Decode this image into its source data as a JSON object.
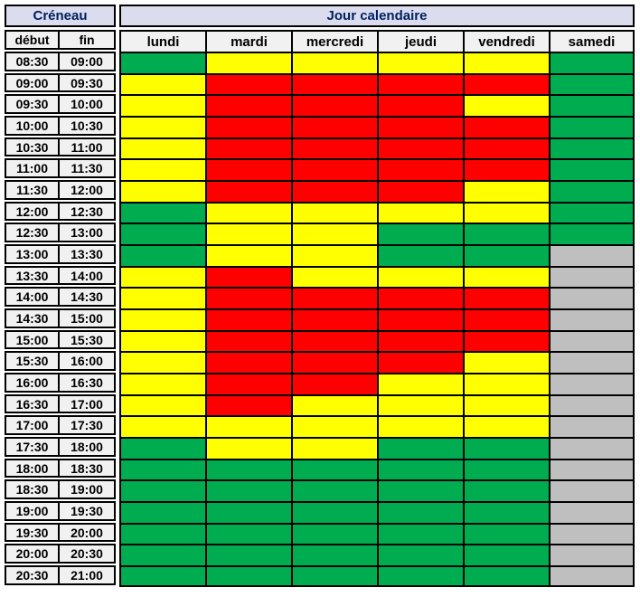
{
  "header": {
    "creneau_label": "Créneau",
    "jour_label": "Jour calendaire",
    "debut_label": "début",
    "fin_label": "fin"
  },
  "colors": {
    "green": "#00AC50",
    "yellow": "#FFFF00",
    "red": "#FF0000",
    "gray": "#BFBFBF",
    "header_bg": "#DCDCEF",
    "header_text": "#002060",
    "label_bg": "#F1F1F1",
    "border": "#000000"
  },
  "chart_data": {
    "type": "heatmap",
    "title": "Créneau / Jour calendaire availability grid",
    "columns": [
      "lundi",
      "mardi",
      "mercredi",
      "jeudi",
      "vendredi",
      "samedi"
    ],
    "cell_states": [
      "green",
      "yellow",
      "red",
      "gray"
    ],
    "rows": [
      {
        "debut": "08:30",
        "fin": "09:00",
        "cells": [
          "green",
          "yellow",
          "yellow",
          "yellow",
          "yellow",
          "green"
        ]
      },
      {
        "debut": "09:00",
        "fin": "09:30",
        "cells": [
          "yellow",
          "red",
          "red",
          "red",
          "red",
          "green"
        ]
      },
      {
        "debut": "09:30",
        "fin": "10:00",
        "cells": [
          "yellow",
          "red",
          "red",
          "red",
          "yellow",
          "green"
        ]
      },
      {
        "debut": "10:00",
        "fin": "10:30",
        "cells": [
          "yellow",
          "red",
          "red",
          "red",
          "red",
          "green"
        ]
      },
      {
        "debut": "10:30",
        "fin": "11:00",
        "cells": [
          "yellow",
          "red",
          "red",
          "red",
          "red",
          "green"
        ]
      },
      {
        "debut": "11:00",
        "fin": "11:30",
        "cells": [
          "yellow",
          "red",
          "red",
          "red",
          "red",
          "green"
        ]
      },
      {
        "debut": "11:30",
        "fin": "12:00",
        "cells": [
          "yellow",
          "red",
          "red",
          "red",
          "yellow",
          "green"
        ]
      },
      {
        "debut": "12:00",
        "fin": "12:30",
        "cells": [
          "green",
          "yellow",
          "yellow",
          "yellow",
          "yellow",
          "green"
        ]
      },
      {
        "debut": "12:30",
        "fin": "13:00",
        "cells": [
          "green",
          "yellow",
          "yellow",
          "green",
          "green",
          "green"
        ]
      },
      {
        "debut": "13:00",
        "fin": "13:30",
        "cells": [
          "green",
          "yellow",
          "yellow",
          "green",
          "green",
          "gray"
        ]
      },
      {
        "debut": "13:30",
        "fin": "14:00",
        "cells": [
          "yellow",
          "red",
          "yellow",
          "yellow",
          "yellow",
          "gray"
        ]
      },
      {
        "debut": "14:00",
        "fin": "14:30",
        "cells": [
          "yellow",
          "red",
          "red",
          "red",
          "red",
          "gray"
        ]
      },
      {
        "debut": "14:30",
        "fin": "15:00",
        "cells": [
          "yellow",
          "red",
          "red",
          "red",
          "red",
          "gray"
        ]
      },
      {
        "debut": "15:00",
        "fin": "15:30",
        "cells": [
          "yellow",
          "red",
          "red",
          "red",
          "red",
          "gray"
        ]
      },
      {
        "debut": "15:30",
        "fin": "16:00",
        "cells": [
          "yellow",
          "red",
          "red",
          "red",
          "yellow",
          "gray"
        ]
      },
      {
        "debut": "16:00",
        "fin": "16:30",
        "cells": [
          "yellow",
          "red",
          "red",
          "yellow",
          "yellow",
          "gray"
        ]
      },
      {
        "debut": "16:30",
        "fin": "17:00",
        "cells": [
          "yellow",
          "red",
          "yellow",
          "yellow",
          "yellow",
          "gray"
        ]
      },
      {
        "debut": "17:00",
        "fin": "17:30",
        "cells": [
          "yellow",
          "yellow",
          "yellow",
          "yellow",
          "yellow",
          "gray"
        ]
      },
      {
        "debut": "17:30",
        "fin": "18:00",
        "cells": [
          "green",
          "yellow",
          "yellow",
          "green",
          "green",
          "gray"
        ]
      },
      {
        "debut": "18:00",
        "fin": "18:30",
        "cells": [
          "green",
          "green",
          "green",
          "green",
          "green",
          "gray"
        ]
      },
      {
        "debut": "18:30",
        "fin": "19:00",
        "cells": [
          "green",
          "green",
          "green",
          "green",
          "green",
          "gray"
        ]
      },
      {
        "debut": "19:00",
        "fin": "19:30",
        "cells": [
          "green",
          "green",
          "green",
          "green",
          "green",
          "gray"
        ]
      },
      {
        "debut": "19:30",
        "fin": "20:00",
        "cells": [
          "green",
          "green",
          "green",
          "green",
          "green",
          "gray"
        ]
      },
      {
        "debut": "20:00",
        "fin": "20:30",
        "cells": [
          "green",
          "green",
          "green",
          "green",
          "green",
          "gray"
        ]
      },
      {
        "debut": "20:30",
        "fin": "21:00",
        "cells": [
          "green",
          "green",
          "green",
          "green",
          "green",
          "gray"
        ]
      }
    ]
  }
}
